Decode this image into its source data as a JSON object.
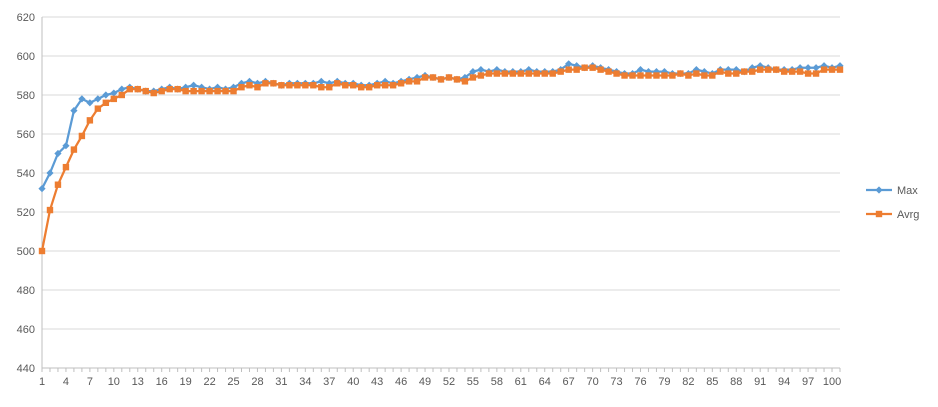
{
  "chart_data": {
    "type": "line",
    "x": [
      1,
      2,
      3,
      4,
      5,
      6,
      7,
      8,
      9,
      10,
      11,
      12,
      13,
      14,
      15,
      16,
      17,
      18,
      19,
      20,
      21,
      22,
      23,
      24,
      25,
      26,
      27,
      28,
      29,
      30,
      31,
      32,
      33,
      34,
      35,
      36,
      37,
      38,
      39,
      40,
      41,
      42,
      43,
      44,
      45,
      46,
      47,
      48,
      49,
      50,
      51,
      52,
      53,
      54,
      55,
      56,
      57,
      58,
      59,
      60,
      61,
      62,
      63,
      64,
      65,
      66,
      67,
      68,
      69,
      70,
      71,
      72,
      73,
      74,
      75,
      76,
      77,
      78,
      79,
      80,
      81,
      82,
      83,
      84,
      85,
      86,
      87,
      88,
      89,
      90,
      91,
      92,
      93,
      94,
      95,
      96,
      97,
      98,
      99,
      100,
      101
    ],
    "x_tick_labels": [
      "1",
      "4",
      "7",
      "10",
      "13",
      "16",
      "19",
      "22",
      "25",
      "28",
      "31",
      "34",
      "37",
      "40",
      "43",
      "46",
      "49",
      "52",
      "55",
      "58",
      "61",
      "64",
      "67",
      "70",
      "73",
      "76",
      "79",
      "82",
      "85",
      "88",
      "91",
      "94",
      "97",
      "100"
    ],
    "ylim": [
      440,
      620
    ],
    "y_ticks": [
      440,
      460,
      480,
      500,
      520,
      540,
      560,
      580,
      600,
      620
    ],
    "grid": true,
    "legend_position": "right",
    "series": [
      {
        "name": "Max",
        "color": "#5B9BD5",
        "marker": "diamond",
        "values": [
          532,
          540,
          550,
          554,
          572,
          578,
          576,
          578,
          580,
          581,
          583,
          584,
          583,
          582,
          582,
          583,
          584,
          583,
          584,
          585,
          584,
          583,
          584,
          583,
          584,
          586,
          587,
          586,
          587,
          586,
          585,
          586,
          586,
          586,
          586,
          587,
          586,
          587,
          586,
          586,
          585,
          585,
          586,
          587,
          586,
          587,
          588,
          589,
          590,
          589,
          588,
          589,
          588,
          589,
          592,
          593,
          592,
          593,
          592,
          592,
          592,
          593,
          592,
          592,
          592,
          593,
          596,
          595,
          594,
          595,
          594,
          593,
          592,
          591,
          591,
          593,
          592,
          592,
          592,
          591,
          591,
          591,
          593,
          592,
          591,
          593,
          593,
          593,
          592,
          594,
          595,
          594,
          593,
          593,
          593,
          594,
          594,
          594,
          595,
          594,
          595
        ]
      },
      {
        "name": "Avrg",
        "color": "#ED7D31",
        "marker": "square",
        "values": [
          500,
          521,
          534,
          543,
          552,
          559,
          567,
          573,
          576,
          578,
          580,
          583,
          583,
          582,
          581,
          582,
          583,
          583,
          582,
          582,
          582,
          582,
          582,
          582,
          582,
          584,
          585,
          584,
          586,
          586,
          585,
          585,
          585,
          585,
          585,
          584,
          584,
          586,
          585,
          585,
          584,
          584,
          585,
          585,
          585,
          586,
          587,
          587,
          589,
          589,
          588,
          589,
          588,
          587,
          589,
          590,
          591,
          591,
          591,
          591,
          591,
          591,
          591,
          591,
          591,
          592,
          593,
          593,
          594,
          594,
          593,
          592,
          591,
          590,
          590,
          590,
          590,
          590,
          590,
          590,
          591,
          590,
          591,
          590,
          590,
          592,
          591,
          591,
          592,
          592,
          593,
          593,
          593,
          592,
          592,
          592,
          591,
          591,
          593,
          593,
          593
        ]
      }
    ]
  }
}
